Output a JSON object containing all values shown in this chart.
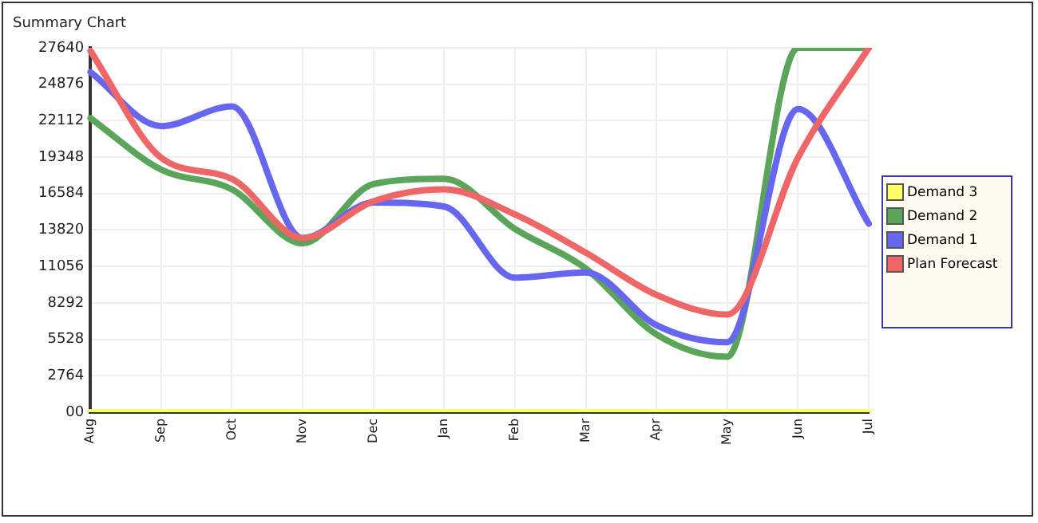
{
  "chart_data": {
    "type": "line",
    "title": "Summary Chart",
    "categories": [
      "Aug",
      "Sep",
      "Oct",
      "Nov",
      "Dec",
      "Jan",
      "Feb",
      "Mar",
      "Apr",
      "May",
      "Jun",
      "Jul"
    ],
    "series": [
      {
        "name": "Demand 3",
        "color": "#ffff66",
        "values": [
          0,
          0,
          0,
          0,
          0,
          0,
          0,
          0,
          0,
          0,
          0,
          0
        ]
      },
      {
        "name": "Demand 2",
        "color": "#5aa55a",
        "values": [
          22300,
          18400,
          16900,
          12800,
          17300,
          17700,
          13900,
          10900,
          5900,
          4200,
          27640,
          27640
        ]
      },
      {
        "name": "Demand 1",
        "color": "#6666ee",
        "values": [
          25800,
          21700,
          23200,
          13200,
          15900,
          15600,
          10200,
          10600,
          6600,
          5300,
          23000,
          14300
        ]
      },
      {
        "name": "Plan Forecast",
        "color": "#ee6666",
        "values": [
          27400,
          19300,
          17700,
          13200,
          16000,
          16900,
          15000,
          12100,
          8900,
          7400,
          19300,
          27640
        ]
      }
    ],
    "ylim": [
      0,
      27640
    ],
    "yticks": [
      {
        "value": 0,
        "label": "00"
      },
      2764,
      5528,
      8292,
      11056,
      13820,
      16584,
      19348,
      22112,
      24876,
      27640
    ],
    "grid": true,
    "legend": "right",
    "marker": "none",
    "line_style": "solid"
  }
}
